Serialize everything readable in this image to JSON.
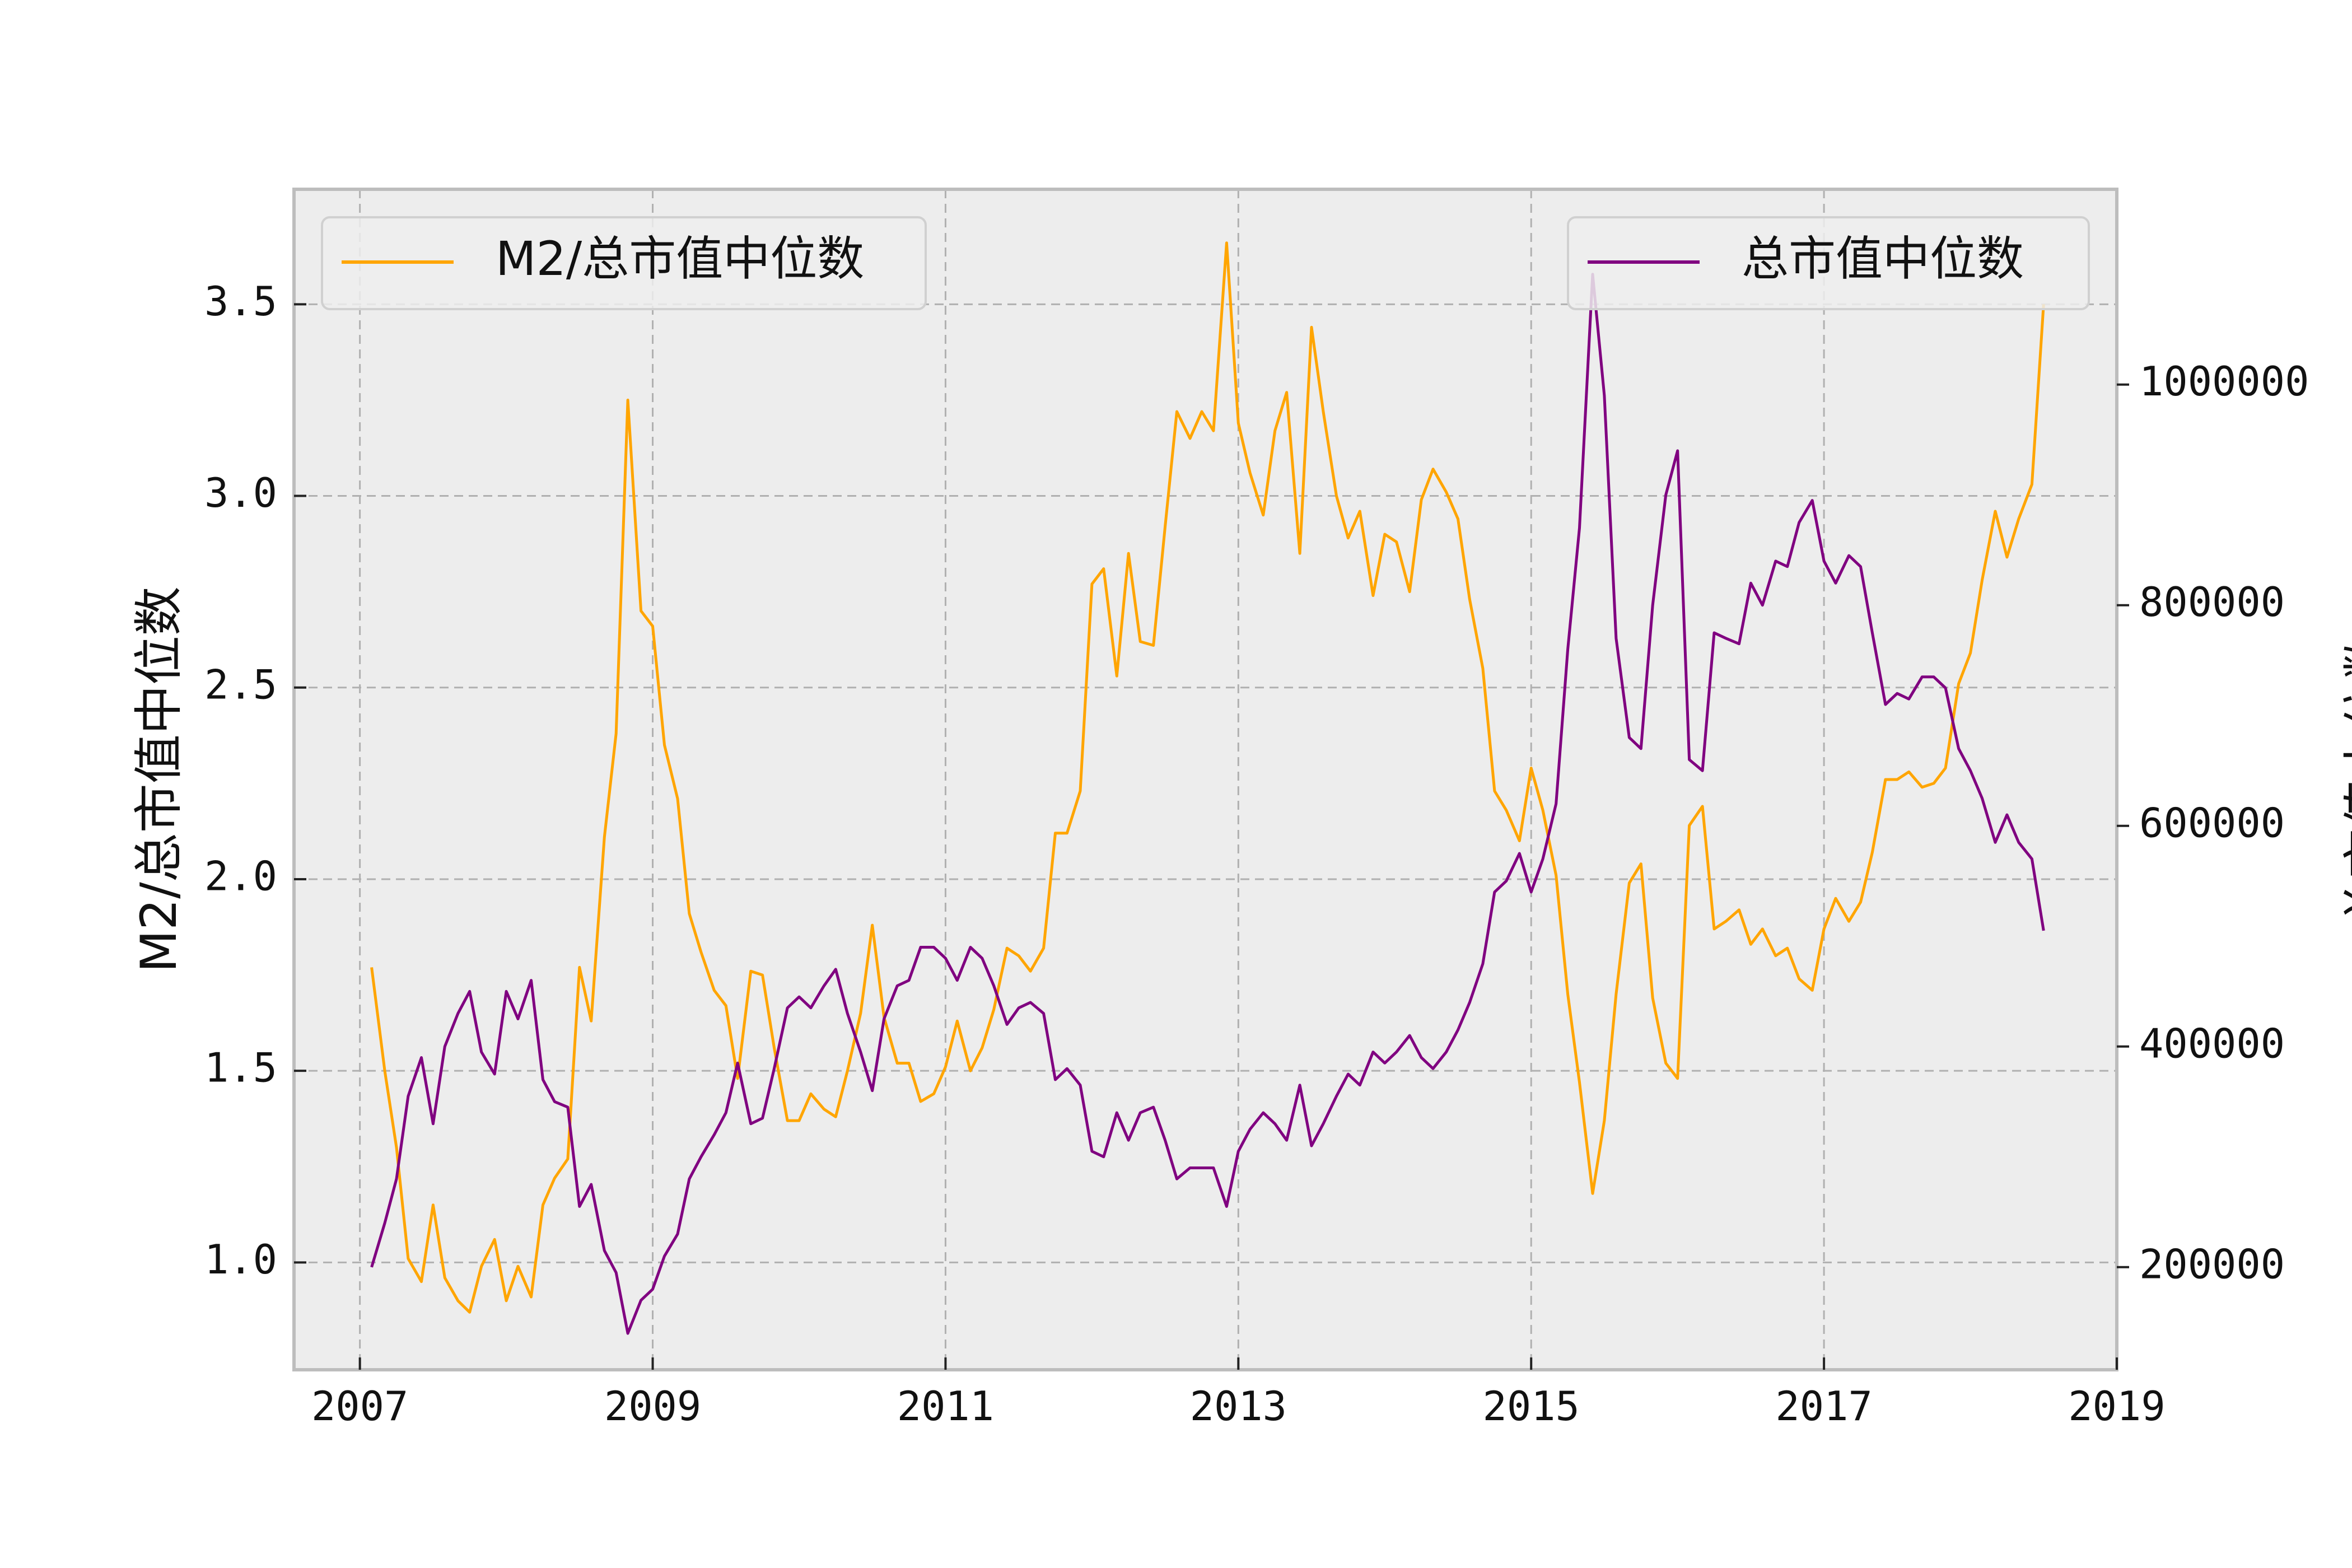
{
  "chart_data": {
    "type": "line",
    "title": "",
    "xlabel": "",
    "ylabel_left": "M2/总市值中位数",
    "ylabel_right": "总市值中位数",
    "xlim": [
      2006.55,
      2019.0
    ],
    "ylim_left": [
      0.72,
      3.8
    ],
    "ylim_right": [
      107000,
      1177000
    ],
    "x_ticks": [
      2007,
      2009,
      2011,
      2013,
      2015,
      2017,
      2019
    ],
    "y_ticks_left": [
      "1.0",
      "1.5",
      "2.0",
      "2.5",
      "3.0",
      "3.5"
    ],
    "y_ticks_right": [
      "200000",
      "400000",
      "600000",
      "800000",
      "1000000"
    ],
    "grid": true,
    "legend_left": "upper-left",
    "legend_right": "upper-right",
    "series": [
      {
        "name": "M2/总市值中位数",
        "axis": "left",
        "color": "#FFA500",
        "x": [
          2007.08,
          2007.17,
          2007.25,
          2007.33,
          2007.42,
          2007.5,
          2007.58,
          2007.67,
          2007.75,
          2007.83,
          2007.92,
          2008.0,
          2008.08,
          2008.17,
          2008.25,
          2008.33,
          2008.42,
          2008.5,
          2008.58,
          2008.67,
          2008.75,
          2008.83,
          2008.92,
          2009.0,
          2009.08,
          2009.17,
          2009.25,
          2009.33,
          2009.42,
          2009.5,
          2009.58,
          2009.67,
          2009.75,
          2009.83,
          2009.92,
          2010.0,
          2010.08,
          2010.17,
          2010.25,
          2010.33,
          2010.42,
          2010.5,
          2010.58,
          2010.67,
          2010.75,
          2010.83,
          2010.92,
          2011.0,
          2011.08,
          2011.17,
          2011.25,
          2011.33,
          2011.42,
          2011.5,
          2011.58,
          2011.67,
          2011.75,
          2011.83,
          2011.92,
          2012.0,
          2012.08,
          2012.17,
          2012.25,
          2012.33,
          2012.42,
          2012.5,
          2012.58,
          2012.67,
          2012.75,
          2012.83,
          2012.92,
          2013.0,
          2013.08,
          2013.17,
          2013.25,
          2013.33,
          2013.42,
          2013.5,
          2013.58,
          2013.67,
          2013.75,
          2013.83,
          2013.92,
          2014.0,
          2014.08,
          2014.17,
          2014.25,
          2014.33,
          2014.42,
          2014.5,
          2014.58,
          2014.67,
          2014.75,
          2014.83,
          2014.92,
          2015.0,
          2015.08,
          2015.17,
          2015.25,
          2015.33,
          2015.42,
          2015.5,
          2015.58,
          2015.67,
          2015.75,
          2015.83,
          2015.92,
          2016.0,
          2016.08,
          2016.17,
          2016.25,
          2016.33,
          2016.42,
          2016.5,
          2016.58,
          2016.67,
          2016.75,
          2016.83,
          2016.92,
          2017.0,
          2017.08,
          2017.17,
          2017.25,
          2017.33,
          2017.42,
          2017.5,
          2017.58,
          2017.67,
          2017.75,
          2017.83,
          2017.92,
          2018.0,
          2018.08,
          2018.17,
          2018.25,
          2018.33,
          2018.42,
          2018.5
        ],
        "values": [
          1.77,
          1.5,
          1.3,
          1.01,
          0.95,
          1.15,
          0.96,
          0.9,
          0.87,
          0.99,
          1.06,
          0.9,
          0.99,
          0.91,
          1.15,
          1.22,
          1.27,
          1.77,
          1.63,
          2.11,
          2.38,
          3.25,
          2.7,
          2.66,
          2.35,
          2.21,
          1.91,
          1.81,
          1.71,
          1.67,
          1.48,
          1.76,
          1.75,
          1.56,
          1.37,
          1.37,
          1.44,
          1.4,
          1.38,
          1.5,
          1.65,
          1.88,
          1.64,
          1.52,
          1.52,
          1.42,
          1.44,
          1.51,
          1.63,
          1.5,
          1.56,
          1.66,
          1.82,
          1.8,
          1.76,
          1.82,
          2.12,
          2.12,
          2.23,
          2.77,
          2.81,
          2.53,
          2.85,
          2.62,
          2.61,
          2.92,
          3.22,
          3.15,
          3.22,
          3.17,
          3.66,
          3.19,
          3.06,
          2.95,
          3.17,
          3.27,
          2.85,
          3.44,
          3.22,
          3.0,
          2.89,
          2.96,
          2.74,
          2.9,
          2.88,
          2.75,
          2.99,
          3.07,
          3.01,
          2.94,
          2.73,
          2.55,
          2.23,
          2.18,
          2.1,
          2.29,
          2.18,
          2.01,
          1.7,
          1.47,
          1.18,
          1.37,
          1.7,
          1.99,
          2.04,
          1.69,
          1.52,
          1.48,
          2.14,
          2.19,
          1.87,
          1.89,
          1.92,
          1.83,
          1.87,
          1.8,
          1.82,
          1.74,
          1.71,
          1.87,
          1.95,
          1.89,
          1.94,
          2.07,
          2.26,
          2.26,
          2.28,
          2.24,
          2.25,
          2.29,
          2.51,
          2.59,
          2.78,
          2.96,
          2.84,
          2.94,
          3.03,
          3.5
        ]
      },
      {
        "name": "总市值中位数",
        "axis": "right",
        "color": "#800080",
        "x": [
          2007.08,
          2007.17,
          2007.25,
          2007.33,
          2007.42,
          2007.5,
          2007.58,
          2007.67,
          2007.75,
          2007.83,
          2007.92,
          2008.0,
          2008.08,
          2008.17,
          2008.25,
          2008.33,
          2008.42,
          2008.5,
          2008.58,
          2008.67,
          2008.75,
          2008.83,
          2008.92,
          2009.0,
          2009.08,
          2009.17,
          2009.25,
          2009.33,
          2009.42,
          2009.5,
          2009.58,
          2009.67,
          2009.75,
          2009.83,
          2009.92,
          2010.0,
          2010.08,
          2010.17,
          2010.25,
          2010.33,
          2010.42,
          2010.5,
          2010.58,
          2010.67,
          2010.75,
          2010.83,
          2010.92,
          2011.0,
          2011.08,
          2011.17,
          2011.25,
          2011.33,
          2011.42,
          2011.5,
          2011.58,
          2011.67,
          2011.75,
          2011.83,
          2011.92,
          2012.0,
          2012.08,
          2012.17,
          2012.25,
          2012.33,
          2012.42,
          2012.5,
          2012.58,
          2012.67,
          2012.75,
          2012.83,
          2012.92,
          2013.0,
          2013.08,
          2013.17,
          2013.25,
          2013.33,
          2013.42,
          2013.5,
          2013.58,
          2013.67,
          2013.75,
          2013.83,
          2013.92,
          2014.0,
          2014.08,
          2014.17,
          2014.25,
          2014.33,
          2014.42,
          2014.5,
          2014.58,
          2014.67,
          2014.75,
          2014.83,
          2014.92,
          2015.0,
          2015.08,
          2015.17,
          2015.25,
          2015.33,
          2015.42,
          2015.5,
          2015.58,
          2015.67,
          2015.75,
          2015.83,
          2015.92,
          2016.0,
          2016.08,
          2016.17,
          2016.25,
          2016.33,
          2016.42,
          2016.5,
          2016.58,
          2016.67,
          2016.75,
          2016.83,
          2016.92,
          2017.0,
          2017.08,
          2017.17,
          2017.25,
          2017.33,
          2017.42,
          2017.5,
          2017.58,
          2017.67,
          2017.75,
          2017.83,
          2017.92,
          2018.0,
          2018.08,
          2018.17,
          2018.25,
          2018.33,
          2018.42,
          2018.5
        ],
        "values": [
          200000,
          240000,
          280000,
          355000,
          390000,
          330000,
          400000,
          430000,
          450000,
          395000,
          375000,
          450000,
          425000,
          460000,
          370000,
          350000,
          345000,
          255000,
          275000,
          215000,
          195000,
          140000,
          170000,
          180000,
          210000,
          230000,
          280000,
          300000,
          320000,
          340000,
          385000,
          330000,
          335000,
          380000,
          435000,
          445000,
          435000,
          455000,
          470000,
          430000,
          395000,
          360000,
          425000,
          455000,
          460000,
          490000,
          490000,
          480000,
          460000,
          490000,
          480000,
          455000,
          420000,
          435000,
          440000,
          430000,
          370000,
          380000,
          365000,
          305000,
          300000,
          340000,
          315000,
          340000,
          345000,
          315000,
          280000,
          290000,
          290000,
          290000,
          255000,
          305000,
          325000,
          340000,
          330000,
          315000,
          365000,
          310000,
          330000,
          355000,
          375000,
          365000,
          395000,
          385000,
          395000,
          410000,
          390000,
          380000,
          395000,
          415000,
          440000,
          475000,
          540000,
          550000,
          575000,
          540000,
          570000,
          620000,
          760000,
          870000,
          1100000,
          990000,
          770000,
          680000,
          670000,
          800000,
          900000,
          940000,
          660000,
          650000,
          775000,
          770000,
          765000,
          820000,
          800000,
          840000,
          835000,
          875000,
          895000,
          840000,
          820000,
          845000,
          835000,
          775000,
          710000,
          720000,
          715000,
          735000,
          735000,
          725000,
          670000,
          650000,
          625000,
          585000,
          610000,
          585000,
          570000,
          505000
        ]
      }
    ]
  }
}
